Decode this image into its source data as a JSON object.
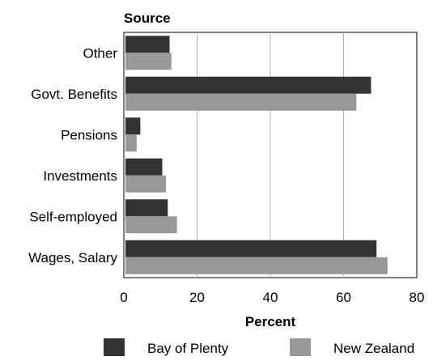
{
  "chart_data": {
    "type": "bar",
    "orientation": "horizontal",
    "title": "",
    "ylabel": "Source",
    "xlabel": "Percent",
    "categories": [
      "Other",
      "Govt. Benefits",
      "Pensions",
      "Investments",
      "Self-employed",
      "Wages, Salary"
    ],
    "series": [
      {
        "name": "Bay of Plenty",
        "values": [
          12.5,
          67.5,
          4.5,
          10.5,
          12,
          69
        ],
        "color": "#333333"
      },
      {
        "name": "New Zealand",
        "values": [
          13,
          63.5,
          3.5,
          11.5,
          14.5,
          72
        ],
        "color": "#999999"
      }
    ],
    "xlim": [
      0,
      80
    ],
    "xticks": [
      0,
      20,
      40,
      60,
      80
    ],
    "xtick_labels": [
      "0",
      "20",
      "40",
      "60",
      "80"
    ],
    "grid": true,
    "legend_position": "bottom"
  }
}
